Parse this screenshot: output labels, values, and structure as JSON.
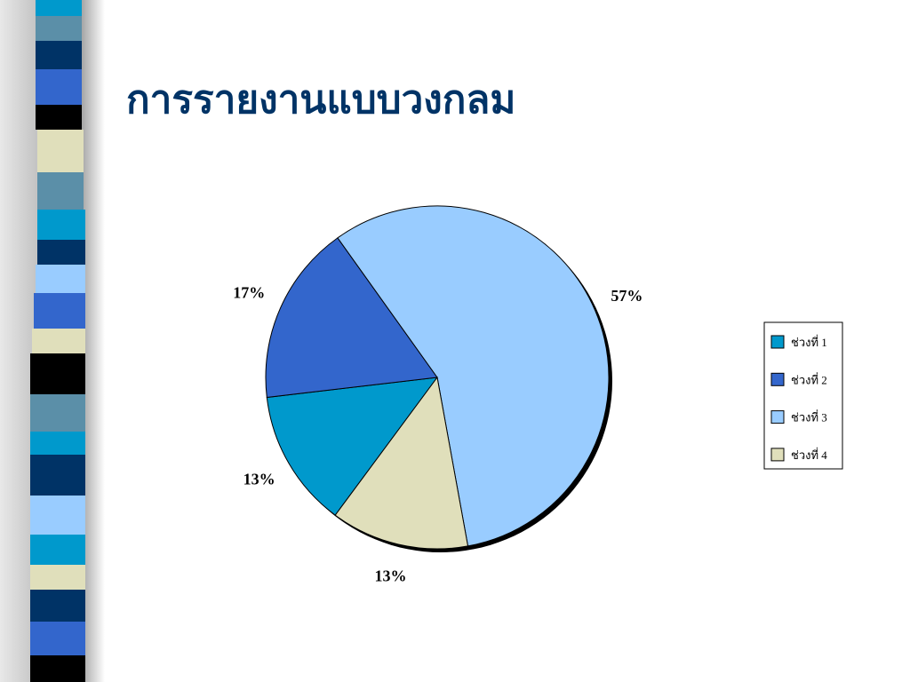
{
  "chart_data": {
    "type": "pie",
    "title": "การรายงานแบบวงกลม",
    "categories": [
      "ช่วงที่ 1",
      "ช่วงที่ 2",
      "ช่วงที่ 3",
      "ช่วงที่ 4"
    ],
    "values": [
      13,
      17,
      57,
      13
    ],
    "value_labels": [
      "13%",
      "17%",
      "57%",
      "13%"
    ],
    "colors": [
      "#0099cc",
      "#3366cc",
      "#99ccff",
      "#e0dfbb"
    ],
    "legend": "right"
  }
}
